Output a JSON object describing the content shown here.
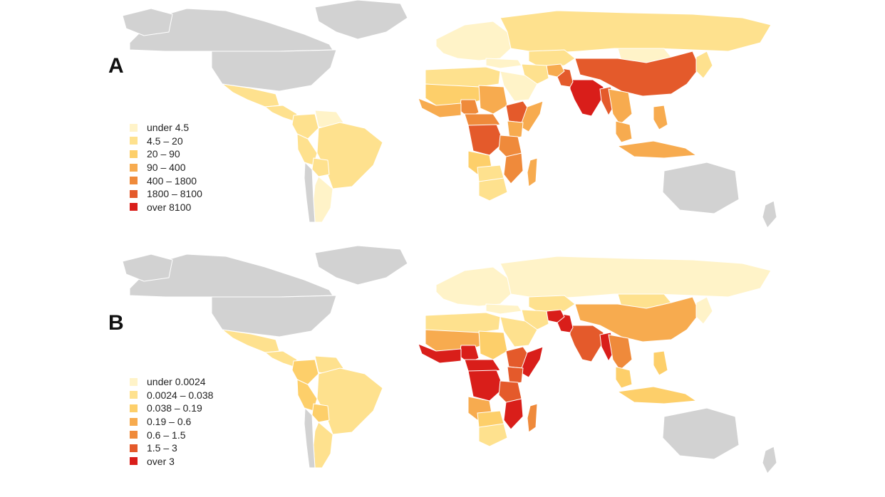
{
  "colors": {
    "no_data": "#d2d2d2",
    "border": "#ffffff",
    "scale": [
      "#fff3c8",
      "#fee18e",
      "#fdcf6a",
      "#f7ab4f",
      "#ef8a3b",
      "#e45a2b",
      "#d91e1a"
    ]
  },
  "panels": [
    {
      "letter": "A",
      "legend": [
        {
          "label": "under 4.5",
          "level": 0
        },
        {
          "label": "4.5 – 20",
          "level": 1
        },
        {
          "label": "20 – 90",
          "level": 2
        },
        {
          "label": "90 – 400",
          "level": 3
        },
        {
          "label": "400 – 1800",
          "level": 4
        },
        {
          "label": "1800 – 8100",
          "level": 5
        },
        {
          "label": "over 8100",
          "level": 6
        }
      ]
    },
    {
      "letter": "B",
      "legend": [
        {
          "label": "under 0.0024",
          "level": 0
        },
        {
          "label": "0.0024 – 0.038",
          "level": 1
        },
        {
          "label": "0.038 – 0.19",
          "level": 2
        },
        {
          "label": "0.19 – 0.6",
          "level": 3
        },
        {
          "label": "0.6 – 1.5",
          "level": 4
        },
        {
          "label": "1.5 – 3",
          "level": 5
        },
        {
          "label": "over 3",
          "level": 6
        }
      ]
    }
  ],
  "regions": [
    {
      "name": "Canada",
      "a": null,
      "b": null
    },
    {
      "name": "Greenland",
      "a": null,
      "b": null
    },
    {
      "name": "United States",
      "a": null,
      "b": null
    },
    {
      "name": "Alaska",
      "a": null,
      "b": null
    },
    {
      "name": "Mexico",
      "a": 1,
      "b": 1
    },
    {
      "name": "Central America",
      "a": 1,
      "b": 1
    },
    {
      "name": "Colombia",
      "a": 1,
      "b": 2
    },
    {
      "name": "Venezuela",
      "a": 0,
      "b": 1
    },
    {
      "name": "Brazil",
      "a": 1,
      "b": 1
    },
    {
      "name": "Peru",
      "a": 1,
      "b": 2
    },
    {
      "name": "Bolivia",
      "a": 1,
      "b": 2
    },
    {
      "name": "Argentina",
      "a": 0,
      "b": 1
    },
    {
      "name": "Chile",
      "a": null,
      "b": null
    },
    {
      "name": "Europe",
      "a": 0,
      "b": 0
    },
    {
      "name": "Russia",
      "a": 1,
      "b": 0
    },
    {
      "name": "Kazakhstan",
      "a": 1,
      "b": 1
    },
    {
      "name": "Mongolia",
      "a": 0,
      "b": 1
    },
    {
      "name": "China",
      "a": 5,
      "b": 3
    },
    {
      "name": "India",
      "a": 6,
      "b": 5
    },
    {
      "name": "Pakistan",
      "a": 5,
      "b": 6
    },
    {
      "name": "Afghanistan",
      "a": 3,
      "b": 6
    },
    {
      "name": "Iran",
      "a": 1,
      "b": 1
    },
    {
      "name": "Arabia",
      "a": 0,
      "b": 1
    },
    {
      "name": "Turkey",
      "a": 0,
      "b": 0
    },
    {
      "name": "North Africa",
      "a": 1,
      "b": 1
    },
    {
      "name": "Sahel",
      "a": 2,
      "b": 3
    },
    {
      "name": "Nigeria",
      "a": 4,
      "b": 6
    },
    {
      "name": "West Africa Coast",
      "a": 3,
      "b": 6
    },
    {
      "name": "Sudan",
      "a": 3,
      "b": 2
    },
    {
      "name": "Ethiopia",
      "a": 5,
      "b": 5
    },
    {
      "name": "Somalia",
      "a": 3,
      "b": 6
    },
    {
      "name": "Kenya",
      "a": 3,
      "b": 5
    },
    {
      "name": "Central Africa",
      "a": 4,
      "b": 6
    },
    {
      "name": "Congo",
      "a": 5,
      "b": 6
    },
    {
      "name": "Tanzania",
      "a": 4,
      "b": 5
    },
    {
      "name": "Angola",
      "a": 2,
      "b": 3
    },
    {
      "name": "Mozambique",
      "a": 4,
      "b": 6
    },
    {
      "name": "Southern Africa",
      "a": 1,
      "b": 2
    },
    {
      "name": "South Africa",
      "a": 1,
      "b": 1
    },
    {
      "name": "Madagascar",
      "a": 3,
      "b": 4
    },
    {
      "name": "Myanmar",
      "a": 5,
      "b": 6
    },
    {
      "name": "Indochina",
      "a": 3,
      "b": 4
    },
    {
      "name": "Southeast Asia",
      "a": 3,
      "b": 2
    },
    {
      "name": "Indonesia",
      "a": 3,
      "b": 2
    },
    {
      "name": "Philippines",
      "a": 3,
      "b": 2
    },
    {
      "name": "Japan",
      "a": 1,
      "b": 0
    },
    {
      "name": "Australia",
      "a": null,
      "b": null
    },
    {
      "name": "New Zealand",
      "a": null,
      "b": null
    }
  ]
}
